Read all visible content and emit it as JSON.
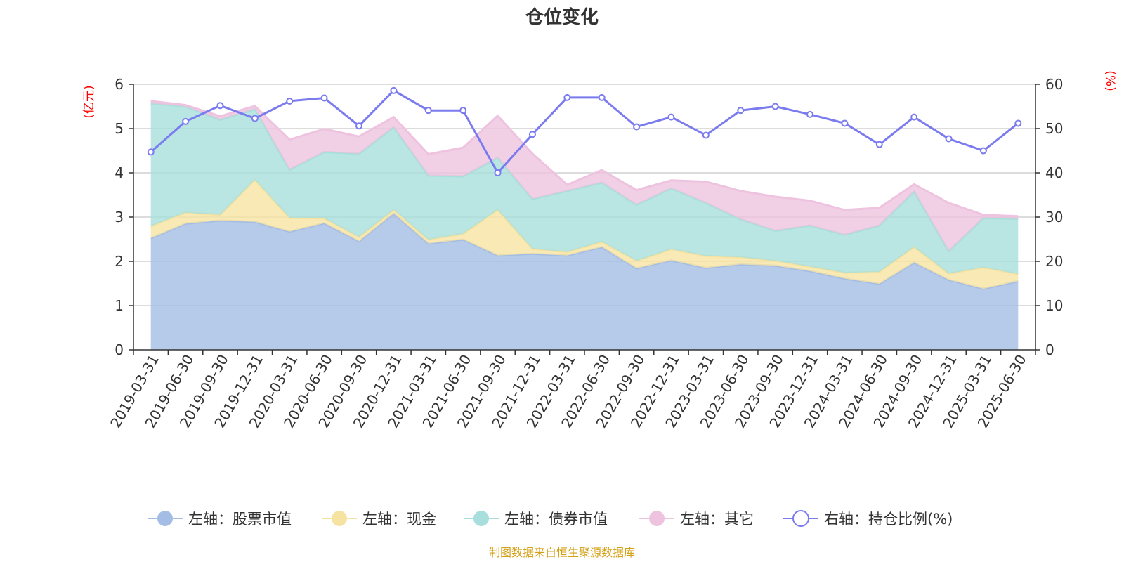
{
  "chart_data": {
    "type": "area",
    "title": "仓位变化",
    "left_axis_unit": "(亿元)",
    "right_axis_unit": "(%)",
    "left_ylim": [
      0,
      6
    ],
    "left_yticks": [
      "0",
      "1",
      "2",
      "3",
      "4",
      "5",
      "6"
    ],
    "right_ylim": [
      0,
      60
    ],
    "right_yticks": [
      "0",
      "10",
      "20",
      "30",
      "40",
      "50",
      "60"
    ],
    "stacked": true,
    "grid": true,
    "legend_position": "bottom",
    "categories": [
      "2019-03-31",
      "2019-06-30",
      "2019-09-30",
      "2019-12-31",
      "2020-03-31",
      "2020-06-30",
      "2020-09-30",
      "2020-12-31",
      "2021-03-31",
      "2021-06-30",
      "2021-09-30",
      "2021-12-31",
      "2022-03-31",
      "2022-06-30",
      "2022-09-30",
      "2022-12-31",
      "2023-03-31",
      "2023-06-30",
      "2023-09-30",
      "2023-12-31",
      "2024-03-31",
      "2024-06-30",
      "2024-09-30",
      "2024-12-31",
      "2025-03-31",
      "2025-06-30"
    ],
    "series": [
      {
        "name": "左轴：股票市值",
        "axis": "left",
        "color": "#a4bde4",
        "values": [
          2.52,
          2.85,
          2.92,
          2.89,
          2.67,
          2.86,
          2.45,
          3.08,
          2.4,
          2.49,
          2.13,
          2.17,
          2.13,
          2.32,
          1.84,
          2.02,
          1.85,
          1.93,
          1.9,
          1.78,
          1.61,
          1.49,
          1.97,
          1.58,
          1.38,
          1.55
        ]
      },
      {
        "name": "左轴：现金",
        "axis": "left",
        "color": "#f7e3a1",
        "values": [
          0.27,
          0.25,
          0.13,
          0.95,
          0.31,
          0.11,
          0.1,
          0.08,
          0.09,
          0.13,
          1.03,
          0.11,
          0.08,
          0.12,
          0.17,
          0.25,
          0.27,
          0.16,
          0.11,
          0.1,
          0.13,
          0.27,
          0.35,
          0.14,
          0.48,
          0.16
        ]
      },
      {
        "name": "左轴：债券市值",
        "axis": "left",
        "color": "#a8dedb",
        "values": [
          2.78,
          2.4,
          2.15,
          1.6,
          1.09,
          1.5,
          1.88,
          1.87,
          1.45,
          1.3,
          1.18,
          1.13,
          1.38,
          1.34,
          1.27,
          1.38,
          1.2,
          0.86,
          0.68,
          0.93,
          0.86,
          1.05,
          1.26,
          0.51,
          1.12,
          1.25
        ]
      },
      {
        "name": "左轴：其它",
        "axis": "left",
        "color": "#eec3df",
        "values": [
          0.05,
          0.03,
          0.08,
          0.07,
          0.68,
          0.52,
          0.39,
          0.23,
          0.48,
          0.65,
          0.95,
          1.02,
          0.14,
          0.28,
          0.33,
          0.18,
          0.48,
          0.64,
          0.77,
          0.56,
          0.56,
          0.4,
          0.16,
          1.09,
          0.07,
          0.06
        ]
      },
      {
        "name": "右轴：持仓比例(%)",
        "axis": "right",
        "color": "#7b7bf0",
        "values": [
          44.7,
          51.6,
          55.2,
          52.3,
          56.2,
          56.9,
          50.6,
          58.6,
          54.1,
          54.1,
          40.0,
          48.7,
          57.0,
          57.0,
          50.4,
          52.6,
          48.5,
          54.1,
          55.0,
          53.2,
          51.2,
          46.4,
          52.6,
          47.7,
          45.0,
          51.2
        ]
      }
    ],
    "source_note": "制图数据来自恒生聚源数据库"
  }
}
